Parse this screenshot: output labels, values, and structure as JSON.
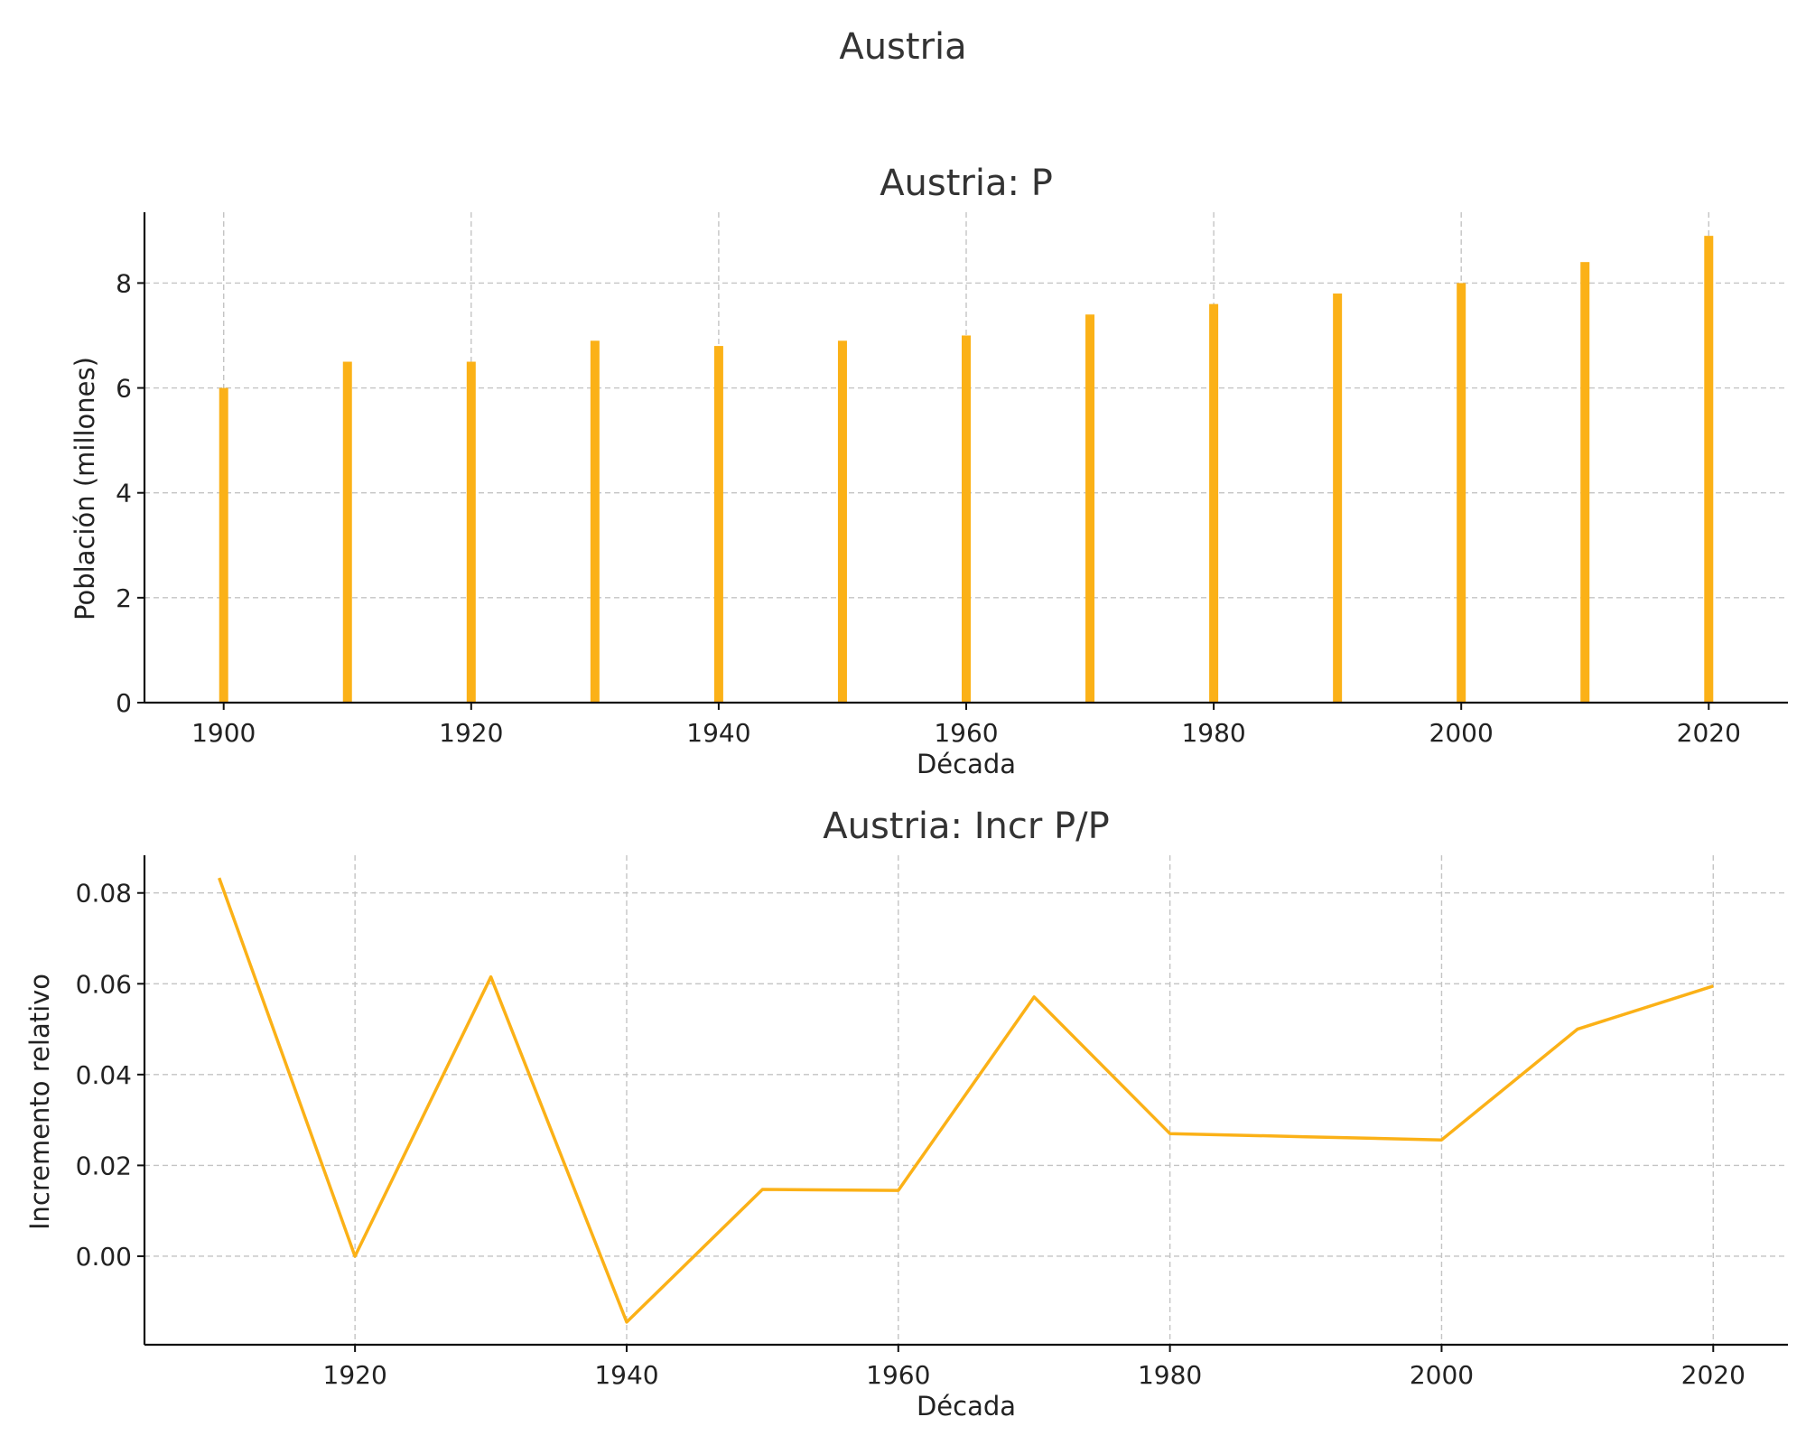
{
  "suptitle": "Austria",
  "chart_data": [
    {
      "type": "bar",
      "title": "Austria: P",
      "xlabel": "Década",
      "ylabel": "Población (millones)",
      "x": [
        1900,
        1910,
        1920,
        1930,
        1940,
        1950,
        1960,
        1970,
        1980,
        1990,
        2000,
        2010,
        2020
      ],
      "values": [
        6.0,
        6.5,
        6.5,
        6.9,
        6.8,
        6.9,
        7.0,
        7.4,
        7.6,
        7.8,
        8.0,
        8.4,
        8.9
      ],
      "xlim": [
        1893.6,
        2026.4
      ],
      "ylim": [
        0,
        9.35
      ],
      "xticks": [
        1900,
        1920,
        1940,
        1960,
        1980,
        2000,
        2020
      ],
      "yticks": [
        0,
        2,
        4,
        6,
        8
      ],
      "grid": true,
      "color": "#FBB117"
    },
    {
      "type": "line",
      "title": "Austria: Incr P/P",
      "xlabel": "Década",
      "ylabel": "Incremento relativo",
      "x": [
        1910,
        1920,
        1930,
        1940,
        1950,
        1960,
        1970,
        1980,
        1990,
        2000,
        2010,
        2020
      ],
      "values": [
        0.0833,
        0.0,
        0.0615,
        -0.0145,
        0.0147,
        0.0145,
        0.0571,
        0.027,
        0.0263,
        0.0256,
        0.05,
        0.0595
      ],
      "xlim": [
        1904.5,
        2025.5
      ],
      "ylim": [
        -0.0195,
        0.0883
      ],
      "xticks": [
        1920,
        1940,
        1960,
        1980,
        2000,
        2020
      ],
      "yticks": [
        "0.00",
        "0.02",
        "0.04",
        "0.06",
        "0.08"
      ],
      "grid": true,
      "color": "#FBB117"
    }
  ]
}
